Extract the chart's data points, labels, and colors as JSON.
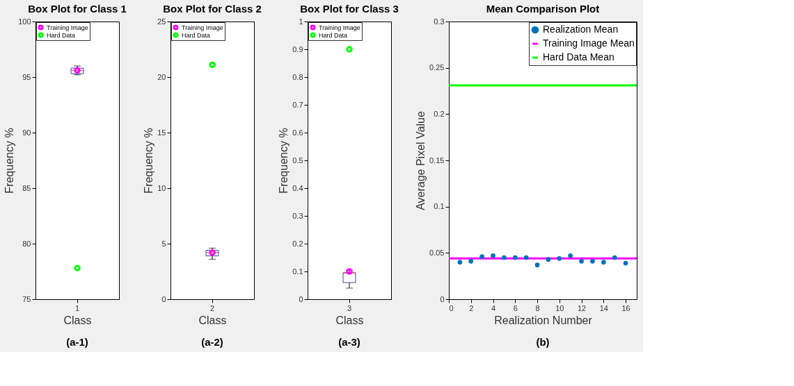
{
  "chart_data": [
    {
      "type": "box",
      "title": "Box Plot for Class 1",
      "xlabel": "Class",
      "ylabel": "Frequency %",
      "categories": [
        "1"
      ],
      "boxes": [
        {
          "low": 95.2,
          "q1": 95.3,
          "median": 95.6,
          "q3": 95.8,
          "high": 96.0
        }
      ],
      "ylim": [
        75,
        100
      ],
      "yticks": [
        75,
        80,
        85,
        90,
        95,
        100
      ],
      "grid": false,
      "legend": "top left",
      "marker": "circle",
      "annotations": [
        "(a-1)"
      ],
      "series": [
        {
          "name": "Training Image",
          "type": "scatter",
          "color": "#ff00ff",
          "x": [
            "1"
          ],
          "values": [
            95.6
          ]
        },
        {
          "name": "Hard Data",
          "type": "scatter",
          "color": "#00ff00",
          "x": [
            "1"
          ],
          "values": [
            77.8
          ]
        }
      ]
    },
    {
      "type": "box",
      "title": "Box Plot for Class 2",
      "xlabel": "Class",
      "ylabel": "Frequency %",
      "categories": [
        "2"
      ],
      "boxes": [
        {
          "low": 3.6,
          "q1": 3.9,
          "median": 4.2,
          "q3": 4.4,
          "high": 4.6
        }
      ],
      "ylim": [
        0,
        25
      ],
      "yticks": [
        0,
        5,
        10,
        15,
        20,
        25
      ],
      "grid": false,
      "legend": "top left",
      "marker": "circle",
      "annotations": [
        "(a-2)"
      ],
      "series": [
        {
          "name": "Training Image",
          "type": "scatter",
          "color": "#ff00ff",
          "x": [
            "2"
          ],
          "values": [
            4.2
          ]
        },
        {
          "name": "Hard Data",
          "type": "scatter",
          "color": "#00ff00",
          "x": [
            "2"
          ],
          "values": [
            21.1
          ]
        }
      ]
    },
    {
      "type": "box",
      "title": "Box Plot for Class 3",
      "xlabel": "Class",
      "ylabel": "Frequency %",
      "categories": [
        "3"
      ],
      "boxes": [
        {
          "low": 0.04,
          "q1": 0.06,
          "median": 0.095,
          "q3": 0.095,
          "high": 0.105
        }
      ],
      "ylim": [
        0,
        1
      ],
      "yticks": [
        0,
        0.1,
        0.2,
        0.3,
        0.4,
        0.5,
        0.6,
        0.7,
        0.8,
        0.9,
        1
      ],
      "grid": false,
      "legend": "top left",
      "marker": "circle",
      "annotations": [
        "(a-3)"
      ],
      "series": [
        {
          "name": "Training Image",
          "type": "scatter",
          "color": "#ff00ff",
          "x": [
            "3"
          ],
          "values": [
            0.1
          ]
        },
        {
          "name": "Hard Data",
          "type": "scatter",
          "color": "#00ff00",
          "x": [
            "3"
          ],
          "values": [
            0.9
          ]
        }
      ]
    },
    {
      "type": "scatter",
      "title": "Mean Comparison Plot",
      "xlabel": "Realization Number",
      "ylabel": "Average Pixel Value",
      "xlim": [
        0,
        17
      ],
      "xticks": [
        0,
        2,
        4,
        6,
        8,
        10,
        12,
        14,
        16
      ],
      "ylim": [
        0,
        0.3
      ],
      "yticks": [
        0,
        0.05,
        0.1,
        0.15,
        0.2,
        0.25,
        0.3
      ],
      "grid": false,
      "legend": "top right",
      "annotations": [
        "(b)"
      ],
      "series": [
        {
          "name": "Realization Mean",
          "type": "scatter",
          "marker": "circle",
          "color": "#0072bd",
          "x": [
            1,
            2,
            3,
            4,
            5,
            6,
            7,
            8,
            9,
            10,
            11,
            12,
            13,
            14,
            15,
            16
          ],
          "values": [
            0.04,
            0.041,
            0.046,
            0.047,
            0.045,
            0.045,
            0.045,
            0.037,
            0.043,
            0.044,
            0.047,
            0.041,
            0.041,
            0.04,
            0.045,
            0.039
          ]
        },
        {
          "name": "Training Image Mean",
          "type": "line",
          "marker": "none",
          "color": "#ff00ff",
          "x": [
            0,
            17
          ],
          "values": [
            0.044,
            0.044
          ]
        },
        {
          "name": "Hard Data Mean",
          "type": "line",
          "marker": "none",
          "color": "#00ff00",
          "x": [
            0,
            17
          ],
          "values": [
            0.231,
            0.231
          ]
        }
      ]
    }
  ]
}
